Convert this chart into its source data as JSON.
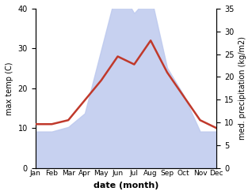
{
  "months": [
    "Jan",
    "Feb",
    "Mar",
    "Apr",
    "May",
    "Jun",
    "Jul",
    "Aug",
    "Sep",
    "Oct",
    "Nov",
    "Dec"
  ],
  "temperature": [
    11,
    11,
    12,
    17,
    22,
    28,
    26,
    32,
    24,
    18,
    12,
    10
  ],
  "precipitation": [
    8,
    8,
    9,
    12,
    26,
    40,
    34,
    38,
    22,
    16,
    8,
    8
  ],
  "temp_color": "#c0392b",
  "precip_fill_color": "#bdc9ee",
  "precip_fill_alpha": 0.85,
  "xlabel": "date (month)",
  "ylabel_left": "max temp (C)",
  "ylabel_right": "med. precipitation (kg/m2)",
  "ylim_left": [
    0,
    40
  ],
  "ylim_right": [
    0,
    35
  ],
  "yticks_left": [
    0,
    10,
    20,
    30,
    40
  ],
  "yticks_right": [
    0,
    5,
    10,
    15,
    20,
    25,
    30,
    35
  ],
  "temp_linewidth": 1.8,
  "bg_color": "#f0f0f0"
}
